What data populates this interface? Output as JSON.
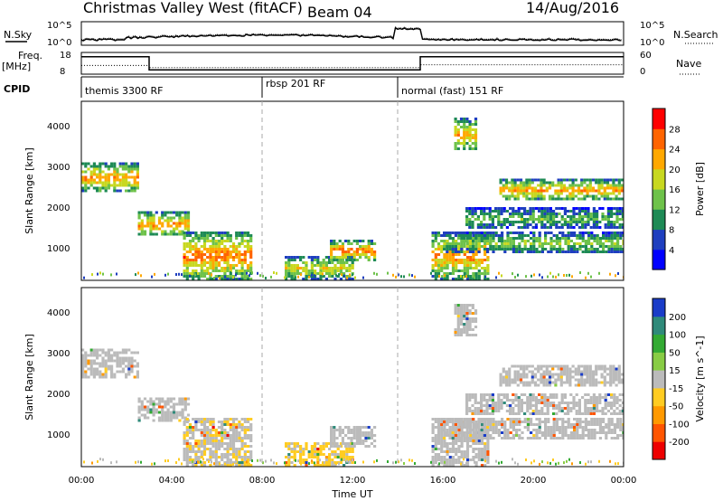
{
  "header": {
    "station": "Christmas Valley West (fitACF)",
    "beam": "Beam 04",
    "date": "14/Aug/2016"
  },
  "nsky_panel": {
    "left_label": "N.Sky",
    "right_label": "N.Search",
    "y_ticks": [
      "10^5",
      "10^0"
    ],
    "y_ticks_right": [
      "10^5",
      "10^0"
    ]
  },
  "freq_panel": {
    "left_label_1": "Freq.",
    "left_label_2": "[MHz]",
    "right_label": "Nave",
    "left_ticks": [
      "18",
      "8"
    ],
    "right_ticks": [
      "60",
      "0"
    ]
  },
  "cpid": {
    "label": "CPID",
    "segments": [
      {
        "start_hour": 0,
        "label": "themis 3300 RF"
      },
      {
        "start_hour": 8,
        "label": "rbsp 201 RF"
      },
      {
        "start_hour": 14,
        "label": "normal (fast) 151 RF"
      }
    ]
  },
  "axes": {
    "x_label": "Time UT",
    "x_ticks": [
      "00:00",
      "04:00",
      "08:00",
      "12:00",
      "16:00",
      "20:00",
      "00:00"
    ],
    "y_label": "Slant Range [km]",
    "y_ticks": [
      "1000",
      "2000",
      "3000",
      "4000"
    ]
  },
  "power_scale": {
    "label": "Power [dB]",
    "ticks": [
      "4",
      "8",
      "12",
      "16",
      "20",
      "24",
      "28"
    ],
    "colors": [
      "#0000ff",
      "#1f3fbf",
      "#1e8a55",
      "#6ec24a",
      "#c8d820",
      "#ffa800",
      "#ff6400",
      "#ff0000"
    ]
  },
  "velocity_scale": {
    "label": "Velocity [m s^-1]",
    "ticks": [
      "200",
      "100",
      "50",
      "15",
      "-15",
      "-50",
      "-100",
      "-200"
    ],
    "colors": [
      "#1a3cc8",
      "#2f8a7a",
      "#33aa33",
      "#88cc44",
      "#bbbbbb",
      "#ffcc22",
      "#ff9900",
      "#ff5500",
      "#ee0000"
    ]
  },
  "chart_data": {
    "type": "heatmap",
    "x_range_hours": [
      0,
      24
    ],
    "y_range_km": [
      200,
      4600
    ],
    "dashed_lines_hours": [
      8,
      14
    ],
    "echo_regions": [
      {
        "t0": 0.0,
        "t1": 2.5,
        "r0": 2400,
        "r1": 3100,
        "power": 24,
        "velocity": 0
      },
      {
        "t0": 2.5,
        "t1": 4.8,
        "r0": 1300,
        "r1": 1900,
        "power": 24,
        "velocity": 0
      },
      {
        "t0": 4.5,
        "t1": 7.5,
        "r0": 250,
        "r1": 1400,
        "power": 26,
        "velocity": -10
      },
      {
        "t0": 9.0,
        "t1": 12.0,
        "r0": 250,
        "r1": 800,
        "power": 20,
        "velocity": -20
      },
      {
        "t0": 11.0,
        "t1": 13.0,
        "r0": 700,
        "r1": 1200,
        "power": 26,
        "velocity": 0
      },
      {
        "t0": 15.5,
        "t1": 18.0,
        "r0": 250,
        "r1": 1400,
        "power": 24,
        "velocity": 0
      },
      {
        "t0": 16.5,
        "t1": 17.5,
        "r0": 3400,
        "r1": 4200,
        "power": 22,
        "velocity": 0
      },
      {
        "t0": 18.5,
        "t1": 24.0,
        "r0": 2200,
        "r1": 2700,
        "power": 24,
        "velocity": 0
      },
      {
        "t0": 17.0,
        "t1": 24.0,
        "r0": 1500,
        "r1": 2000,
        "power": 14,
        "velocity": 0
      },
      {
        "t0": 16.0,
        "t1": 24.0,
        "r0": 900,
        "r1": 1400,
        "power": 16,
        "velocity": 0
      }
    ],
    "freq_mhz": [
      {
        "t0": 0.0,
        "t1": 3.0,
        "value": 16
      },
      {
        "t0": 3.0,
        "t1": 15.0,
        "value": 10
      },
      {
        "t0": 15.0,
        "t1": 24.0,
        "value": 16
      }
    ],
    "nave": [
      {
        "t0": 0.0,
        "t1": 3.0,
        "value": 24
      },
      {
        "t0": 3.0,
        "t1": 15.0,
        "value": 18
      },
      {
        "t0": 15.0,
        "t1": 24.0,
        "value": 26
      }
    ]
  }
}
